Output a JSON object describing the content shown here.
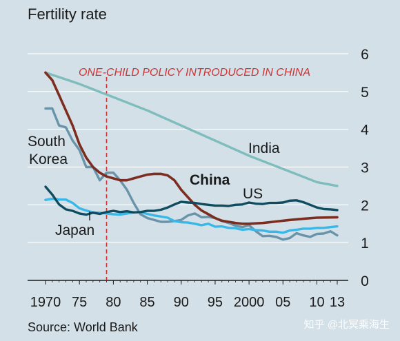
{
  "chart_data": {
    "type": "line",
    "title": "Fertility rate",
    "source": "Source: World Bank",
    "watermark": "知乎 @北冥乘海生",
    "annotation": "ONE-CHILD POLICY INTRODUCED IN CHINA",
    "policy_year": 1979,
    "xlim": [
      1970,
      2013
    ],
    "ylim": [
      0,
      6
    ],
    "yticks": [
      "0",
      "1",
      "2",
      "3",
      "4",
      "5",
      "6"
    ],
    "xtick_labels": [
      {
        "x": 1970,
        "label": "1970"
      },
      {
        "x": 1975,
        "label": "75"
      },
      {
        "x": 1980,
        "label": "80"
      },
      {
        "x": 1985,
        "label": "85"
      },
      {
        "x": 1990,
        "label": "90"
      },
      {
        "x": 1995,
        "label": "95"
      },
      {
        "x": 2000,
        "label": "2000"
      },
      {
        "x": 2005,
        "label": "05"
      },
      {
        "x": 2010,
        "label": "10"
      },
      {
        "x": 2013,
        "label": "13"
      }
    ],
    "grid": true,
    "colors": {
      "background": "#d3e0e7",
      "grid": "#ffffff",
      "annotation": "#d03232",
      "text": "#1a1a1a"
    },
    "series": [
      {
        "name": "India",
        "color": "#7fbcbd",
        "points": [
          [
            1970,
            5.5
          ],
          [
            1975,
            5.2
          ],
          [
            1980,
            4.85
          ],
          [
            1985,
            4.5
          ],
          [
            1990,
            4.1
          ],
          [
            1995,
            3.7
          ],
          [
            2000,
            3.3
          ],
          [
            2005,
            2.95
          ],
          [
            2010,
            2.6
          ],
          [
            2013,
            2.5
          ]
        ]
      },
      {
        "name": "South Korea",
        "color": "#6893a9",
        "points": [
          [
            1970,
            4.55
          ],
          [
            1971,
            4.55
          ],
          [
            1972,
            4.1
          ],
          [
            1973,
            4.05
          ],
          [
            1974,
            3.7
          ],
          [
            1975,
            3.45
          ],
          [
            1976,
            3.0
          ],
          [
            1977,
            3.0
          ],
          [
            1978,
            2.65
          ],
          [
            1979,
            2.85
          ],
          [
            1980,
            2.85
          ],
          [
            1981,
            2.65
          ],
          [
            1982,
            2.4
          ],
          [
            1983,
            2.05
          ],
          [
            1984,
            1.75
          ],
          [
            1985,
            1.65
          ],
          [
            1986,
            1.6
          ],
          [
            1987,
            1.55
          ],
          [
            1988,
            1.55
          ],
          [
            1989,
            1.57
          ],
          [
            1990,
            1.6
          ],
          [
            1991,
            1.72
          ],
          [
            1992,
            1.77
          ],
          [
            1993,
            1.67
          ],
          [
            1994,
            1.68
          ],
          [
            1995,
            1.65
          ],
          [
            1996,
            1.57
          ],
          [
            1997,
            1.52
          ],
          [
            1998,
            1.45
          ],
          [
            1999,
            1.41
          ],
          [
            2000,
            1.46
          ],
          [
            2001,
            1.3
          ],
          [
            2002,
            1.17
          ],
          [
            2003,
            1.18
          ],
          [
            2004,
            1.15
          ],
          [
            2005,
            1.08
          ],
          [
            2006,
            1.12
          ],
          [
            2007,
            1.25
          ],
          [
            2008,
            1.19
          ],
          [
            2009,
            1.15
          ],
          [
            2010,
            1.23
          ],
          [
            2011,
            1.24
          ],
          [
            2012,
            1.3
          ],
          [
            2013,
            1.19
          ]
        ]
      },
      {
        "name": "China",
        "color": "#7d2c20",
        "points": [
          [
            1970,
            5.5
          ],
          [
            1971,
            5.3
          ],
          [
            1972,
            4.9
          ],
          [
            1973,
            4.5
          ],
          [
            1974,
            4.1
          ],
          [
            1975,
            3.6
          ],
          [
            1976,
            3.25
          ],
          [
            1977,
            3.0
          ],
          [
            1978,
            2.85
          ],
          [
            1979,
            2.75
          ],
          [
            1980,
            2.7
          ],
          [
            1981,
            2.65
          ],
          [
            1982,
            2.65
          ],
          [
            1983,
            2.7
          ],
          [
            1984,
            2.75
          ],
          [
            1985,
            2.8
          ],
          [
            1986,
            2.82
          ],
          [
            1987,
            2.82
          ],
          [
            1988,
            2.78
          ],
          [
            1989,
            2.65
          ],
          [
            1990,
            2.4
          ],
          [
            1991,
            2.2
          ],
          [
            1992,
            2.0
          ],
          [
            1993,
            1.85
          ],
          [
            1994,
            1.75
          ],
          [
            1995,
            1.65
          ],
          [
            1996,
            1.58
          ],
          [
            1997,
            1.55
          ],
          [
            1998,
            1.52
          ],
          [
            1999,
            1.5
          ],
          [
            2000,
            1.5
          ],
          [
            2002,
            1.52
          ],
          [
            2004,
            1.56
          ],
          [
            2006,
            1.6
          ],
          [
            2008,
            1.63
          ],
          [
            2010,
            1.66
          ],
          [
            2013,
            1.67
          ]
        ]
      },
      {
        "name": "US",
        "color": "#0f4c5f",
        "points": [
          [
            1970,
            2.48
          ],
          [
            1971,
            2.27
          ],
          [
            1972,
            2.01
          ],
          [
            1973,
            1.88
          ],
          [
            1974,
            1.84
          ],
          [
            1975,
            1.77
          ],
          [
            1976,
            1.74
          ],
          [
            1977,
            1.79
          ],
          [
            1978,
            1.76
          ],
          [
            1979,
            1.81
          ],
          [
            1980,
            1.84
          ],
          [
            1981,
            1.81
          ],
          [
            1982,
            1.83
          ],
          [
            1983,
            1.8
          ],
          [
            1984,
            1.81
          ],
          [
            1985,
            1.84
          ],
          [
            1986,
            1.84
          ],
          [
            1987,
            1.87
          ],
          [
            1988,
            1.93
          ],
          [
            1989,
            2.01
          ],
          [
            1990,
            2.08
          ],
          [
            1991,
            2.06
          ],
          [
            1992,
            2.05
          ],
          [
            1993,
            2.02
          ],
          [
            1994,
            2.0
          ],
          [
            1995,
            1.98
          ],
          [
            1996,
            1.98
          ],
          [
            1997,
            1.97
          ],
          [
            1998,
            2.0
          ],
          [
            1999,
            2.01
          ],
          [
            2000,
            2.06
          ],
          [
            2001,
            2.03
          ],
          [
            2002,
            2.02
          ],
          [
            2003,
            2.05
          ],
          [
            2004,
            2.05
          ],
          [
            2005,
            2.06
          ],
          [
            2006,
            2.11
          ],
          [
            2007,
            2.12
          ],
          [
            2008,
            2.07
          ],
          [
            2009,
            2.0
          ],
          [
            2010,
            1.93
          ],
          [
            2011,
            1.89
          ],
          [
            2012,
            1.88
          ],
          [
            2013,
            1.86
          ]
        ]
      },
      {
        "name": "Japan",
        "color": "#38b8e8",
        "points": [
          [
            1970,
            2.13
          ],
          [
            1971,
            2.16
          ],
          [
            1972,
            2.14
          ],
          [
            1973,
            2.14
          ],
          [
            1974,
            2.05
          ],
          [
            1975,
            1.91
          ],
          [
            1976,
            1.85
          ],
          [
            1977,
            1.8
          ],
          [
            1978,
            1.79
          ],
          [
            1979,
            1.77
          ],
          [
            1980,
            1.75
          ],
          [
            1981,
            1.74
          ],
          [
            1982,
            1.77
          ],
          [
            1983,
            1.8
          ],
          [
            1984,
            1.81
          ],
          [
            1985,
            1.76
          ],
          [
            1986,
            1.72
          ],
          [
            1987,
            1.69
          ],
          [
            1988,
            1.66
          ],
          [
            1989,
            1.57
          ],
          [
            1990,
            1.54
          ],
          [
            1991,
            1.53
          ],
          [
            1992,
            1.5
          ],
          [
            1993,
            1.46
          ],
          [
            1994,
            1.5
          ],
          [
            1995,
            1.42
          ],
          [
            1996,
            1.43
          ],
          [
            1997,
            1.39
          ],
          [
            1998,
            1.38
          ],
          [
            1999,
            1.34
          ],
          [
            2000,
            1.36
          ],
          [
            2001,
            1.33
          ],
          [
            2002,
            1.32
          ],
          [
            2003,
            1.29
          ],
          [
            2004,
            1.29
          ],
          [
            2005,
            1.26
          ],
          [
            2006,
            1.32
          ],
          [
            2007,
            1.34
          ],
          [
            2008,
            1.37
          ],
          [
            2009,
            1.37
          ],
          [
            2010,
            1.39
          ],
          [
            2011,
            1.39
          ],
          [
            2012,
            1.41
          ],
          [
            2013,
            1.43
          ]
        ]
      }
    ]
  }
}
